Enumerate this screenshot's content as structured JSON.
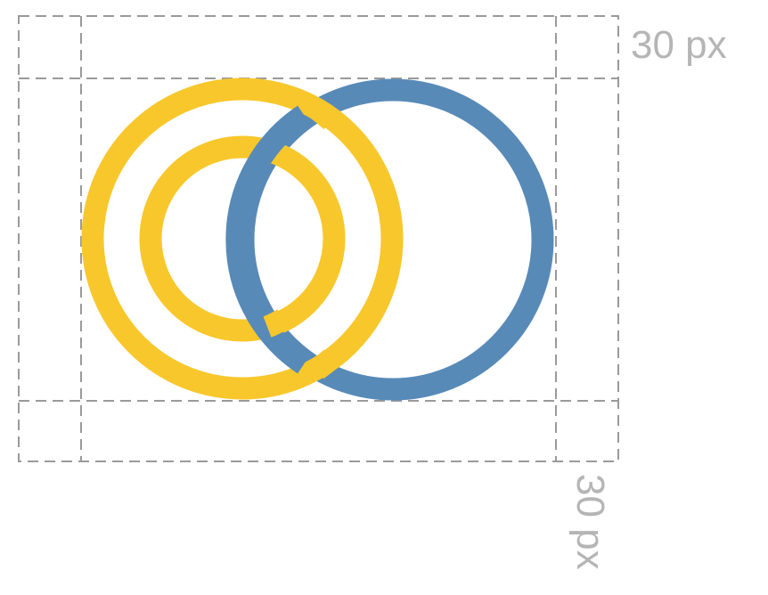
{
  "margin_labels": {
    "top": "30 px",
    "bottom": "30 px"
  },
  "colors": {
    "yellow": "#F8C72B",
    "blue": "#588AB8",
    "guide": "#9a9a9a",
    "label": "#b5b5b5"
  }
}
